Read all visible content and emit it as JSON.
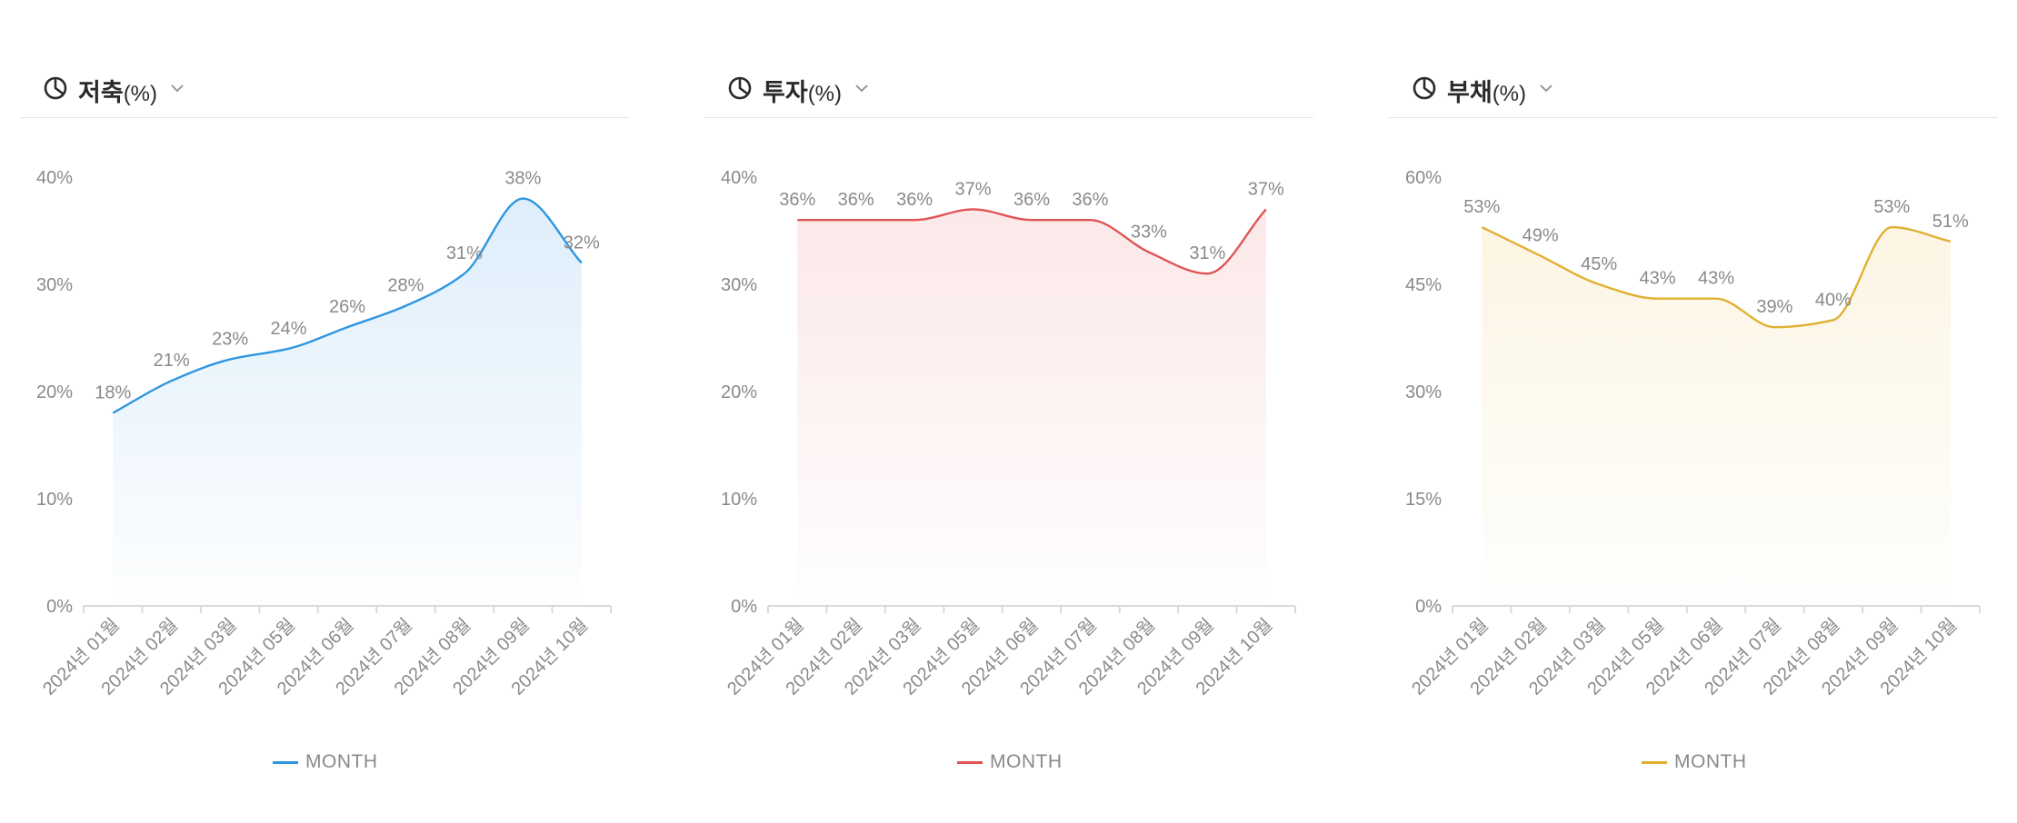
{
  "charts": [
    {
      "title": "저축",
      "unit": "(%)",
      "icon": "pie-chart-icon",
      "color": "#2f96e0",
      "fill_top": "#d8ebfa",
      "legend": "MONTH",
      "chart_data": {
        "type": "area",
        "categories": [
          "2024년 01월",
          "2024년 02월",
          "2024년 03월",
          "2024년 05월",
          "2024년 06월",
          "2024년 07월",
          "2024년 08월",
          "2024년 09월",
          "2024년 10월"
        ],
        "series": [
          {
            "name": "MONTH",
            "values": [
              18,
              21,
              23,
              24,
              26,
              28,
              31,
              38,
              32
            ]
          }
        ],
        "data_labels": [
          "18%",
          "21%",
          "23%",
          "24%",
          "26%",
          "28%",
          "31%",
          "38%",
          "32%"
        ],
        "ylim": [
          0,
          40
        ],
        "yticks": [
          0,
          10,
          20,
          30,
          40
        ],
        "ytick_labels": [
          "0%",
          "10%",
          "20%",
          "30%",
          "40%"
        ],
        "grid": false,
        "legend_position": "bottom"
      }
    },
    {
      "title": "투자",
      "unit": "(%)",
      "icon": "pie-chart-icon",
      "color": "#e05454",
      "fill_top": "#fbe4e4",
      "legend": "MONTH",
      "chart_data": {
        "type": "area",
        "categories": [
          "2024년 01월",
          "2024년 02월",
          "2024년 03월",
          "2024년 05월",
          "2024년 06월",
          "2024년 07월",
          "2024년 08월",
          "2024년 09월",
          "2024년 10월"
        ],
        "series": [
          {
            "name": "MONTH",
            "values": [
              36,
              36,
              36,
              37,
              36,
              36,
              33,
              31,
              37
            ]
          }
        ],
        "data_labels": [
          "36%",
          "36%",
          "36%",
          "37%",
          "36%",
          "36%",
          "33%",
          "31%",
          "37%"
        ],
        "ylim": [
          0,
          40
        ],
        "yticks": [
          0,
          10,
          20,
          30,
          40
        ],
        "ytick_labels": [
          "0%",
          "10%",
          "20%",
          "30%",
          "40%"
        ],
        "grid": false,
        "legend_position": "bottom"
      }
    },
    {
      "title": "부채",
      "unit": "(%)",
      "icon": "pie-chart-icon",
      "color": "#e0b030",
      "fill_top": "#fbf3de",
      "legend": "MONTH",
      "chart_data": {
        "type": "area",
        "categories": [
          "2024년 01월",
          "2024년 02월",
          "2024년 03월",
          "2024년 05월",
          "2024년 06월",
          "2024년 07월",
          "2024년 08월",
          "2024년 09월",
          "2024년 10월"
        ],
        "series": [
          {
            "name": "MONTH",
            "values": [
              53,
              49,
              45,
              43,
              43,
              39,
              40,
              53,
              51
            ]
          }
        ],
        "data_labels": [
          "53%",
          "49%",
          "45%",
          "43%",
          "43%",
          "39%",
          "40%",
          "53%",
          "51%"
        ],
        "ylim": [
          0,
          60
        ],
        "yticks": [
          0,
          15,
          30,
          45,
          60
        ],
        "ytick_labels": [
          "0%",
          "15%",
          "30%",
          "45%",
          "60%"
        ],
        "grid": false,
        "legend_position": "bottom"
      }
    }
  ]
}
